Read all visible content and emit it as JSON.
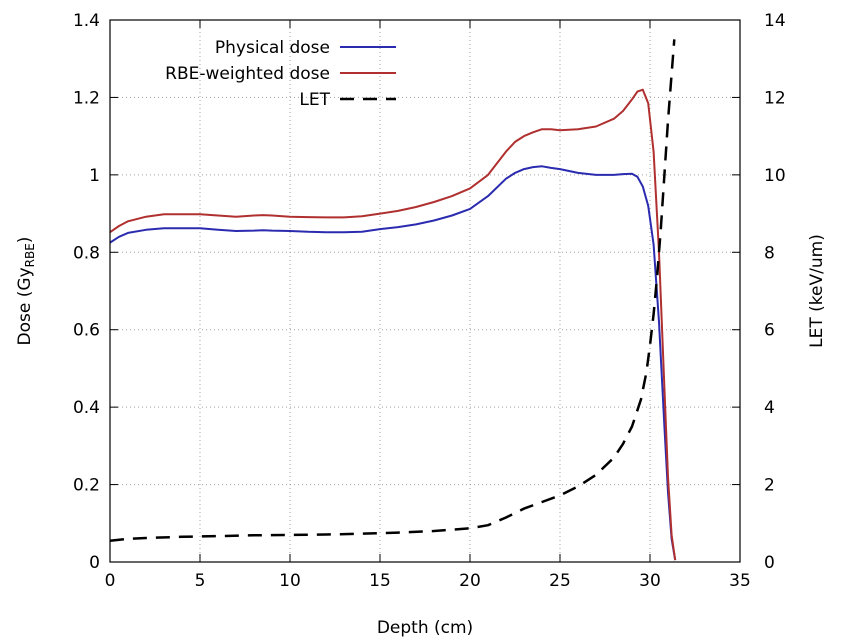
{
  "chart_data": {
    "type": "line",
    "xlabel": "Depth (cm)",
    "ylabel": "Dose (Gy",
    "ylabel_sub": "RBE",
    "ylabel_end": ")",
    "y2label": "LET (keV/um)",
    "xlim": [
      0,
      35
    ],
    "ylim": [
      0,
      1.4
    ],
    "y2lim": [
      0,
      14
    ],
    "x_ticks": [
      "0",
      "5",
      "10",
      "15",
      "20",
      "25",
      "30",
      "35"
    ],
    "y_ticks": [
      "0",
      "0.2",
      "0.4",
      "0.6",
      "0.8",
      "1",
      "1.2",
      "1.4"
    ],
    "y2_ticks": [
      "0",
      "2",
      "4",
      "6",
      "8",
      "10",
      "12",
      "14"
    ],
    "grid": true,
    "legend_position": "top-center",
    "series": [
      {
        "name": "Physical dose",
        "axis": "left",
        "color": "#2b2bb0",
        "style": "solid",
        "x": [
          0,
          0.5,
          1,
          2,
          3,
          4,
          5,
          6,
          7,
          8,
          8.5,
          9,
          10,
          11,
          12,
          13,
          14,
          15,
          16,
          17,
          18,
          19,
          20,
          21,
          22,
          22.5,
          23,
          23.5,
          24,
          24.5,
          25,
          26,
          27,
          28,
          28.5,
          29,
          29.3,
          29.6,
          29.9,
          30.2,
          30.5,
          30.8,
          31.0,
          31.2,
          31.4
        ],
        "y": [
          0.825,
          0.84,
          0.85,
          0.858,
          0.862,
          0.862,
          0.862,
          0.858,
          0.855,
          0.856,
          0.857,
          0.856,
          0.855,
          0.853,
          0.852,
          0.852,
          0.853,
          0.86,
          0.865,
          0.872,
          0.882,
          0.895,
          0.912,
          0.945,
          0.99,
          1.005,
          1.015,
          1.02,
          1.022,
          1.018,
          1.015,
          1.005,
          1.0,
          1.0,
          1.002,
          1.003,
          0.995,
          0.97,
          0.92,
          0.82,
          0.62,
          0.35,
          0.18,
          0.06,
          0.005
        ]
      },
      {
        "name": "RBE-weighted dose",
        "axis": "left",
        "color": "#b03030",
        "style": "solid",
        "x": [
          0,
          0.5,
          1,
          2,
          3,
          4,
          5,
          6,
          7,
          8,
          8.5,
          9,
          10,
          11,
          12,
          13,
          14,
          15,
          16,
          17,
          18,
          19,
          20,
          21,
          22,
          22.5,
          23,
          23.5,
          24,
          24.5,
          25,
          26,
          27,
          28,
          28.5,
          29,
          29.3,
          29.6,
          29.9,
          30.2,
          30.5,
          30.8,
          31.0,
          31.2,
          31.4
        ],
        "y": [
          0.852,
          0.868,
          0.88,
          0.892,
          0.898,
          0.898,
          0.898,
          0.895,
          0.892,
          0.895,
          0.896,
          0.895,
          0.892,
          0.891,
          0.89,
          0.89,
          0.893,
          0.9,
          0.907,
          0.917,
          0.93,
          0.945,
          0.965,
          1.0,
          1.06,
          1.085,
          1.1,
          1.11,
          1.118,
          1.118,
          1.115,
          1.118,
          1.125,
          1.145,
          1.165,
          1.195,
          1.215,
          1.22,
          1.185,
          1.06,
          0.8,
          0.45,
          0.22,
          0.07,
          0.005
        ]
      },
      {
        "name": "LET",
        "axis": "right",
        "color": "#000000",
        "style": "dashed",
        "x": [
          0,
          1,
          2,
          4,
          6,
          8,
          10,
          12,
          14,
          16,
          18,
          20,
          21,
          22,
          23,
          24,
          25,
          26,
          27,
          28,
          28.5,
          29,
          29.5,
          29.8,
          30.0,
          30.2,
          30.4,
          30.6,
          30.8,
          31.0,
          31.2,
          31.35
        ],
        "y": [
          0.55,
          0.6,
          0.62,
          0.65,
          0.67,
          0.69,
          0.7,
          0.71,
          0.73,
          0.76,
          0.8,
          0.87,
          0.95,
          1.15,
          1.38,
          1.55,
          1.72,
          1.95,
          2.25,
          2.7,
          3.05,
          3.5,
          4.2,
          4.9,
          5.6,
          6.4,
          7.4,
          8.6,
          10.0,
          11.4,
          12.6,
          13.5
        ]
      }
    ]
  }
}
